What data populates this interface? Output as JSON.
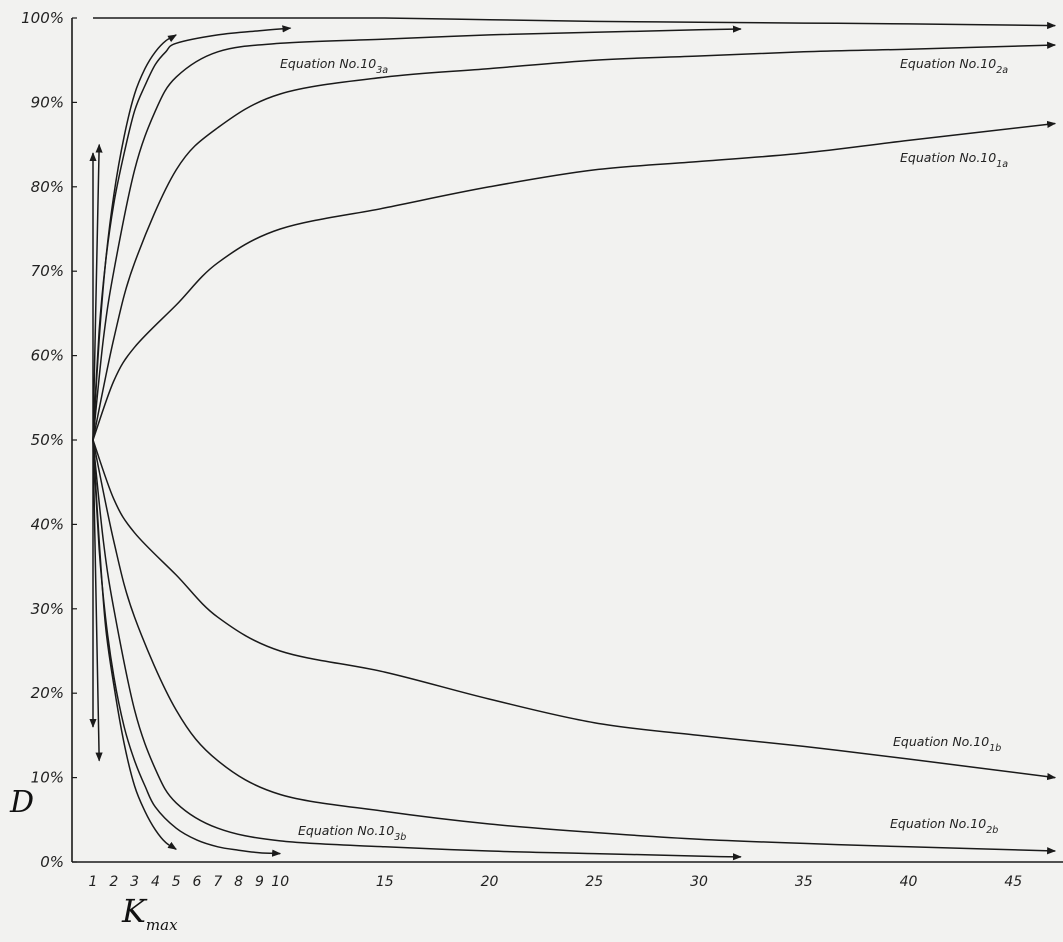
{
  "chart_data": {
    "type": "line",
    "title": "",
    "xlabel": "K",
    "xlabel_sub": "max",
    "ylabel": "D",
    "xlim": [
      0,
      47
    ],
    "ylim": [
      0,
      100
    ],
    "grid": false,
    "legend": "none",
    "x_ticks": [
      "1",
      "2",
      "3",
      "4",
      "5",
      "6",
      "7",
      "8",
      "9",
      "10",
      "15",
      "20",
      "25",
      "30",
      "35",
      "40",
      "45"
    ],
    "y_ticks": [
      "0%",
      "10%",
      "20%",
      "30%",
      "40%",
      "50%",
      "60%",
      "70%",
      "80%",
      "90%",
      "100%"
    ],
    "series": [
      {
        "name": "Equation No.10",
        "sub": "1a",
        "x": [
          1,
          2,
          3,
          5,
          7,
          10,
          15,
          20,
          25,
          30,
          35,
          40,
          47
        ],
        "y": [
          50,
          57,
          61,
          66,
          71,
          75,
          77.5,
          80,
          82,
          83,
          84,
          85.5,
          87.5
        ]
      },
      {
        "name": "Equation No.10",
        "sub": "2a",
        "x": [
          1,
          2,
          3,
          5,
          7,
          10,
          15,
          20,
          25,
          30,
          35,
          40,
          47
        ],
        "y": [
          50,
          62,
          71,
          82,
          87,
          91,
          93,
          94,
          95,
          95.5,
          96,
          96.3,
          96.8
        ]
      },
      {
        "name": "Equation No.10",
        "sub": "3a",
        "x": [
          1,
          1.5,
          2,
          3,
          4,
          5,
          7,
          10,
          15,
          20,
          25,
          30,
          32
        ],
        "y": [
          50,
          62,
          70,
          82,
          89,
          93,
          96,
          97,
          97.5,
          98,
          98.3,
          98.6,
          98.7
        ]
      },
      {
        "name": "",
        "x": [
          1,
          1.3,
          1.6,
          2,
          2.5,
          3,
          3.5,
          4,
          4.5,
          5,
          7,
          9,
          10.5
        ],
        "y": [
          50,
          63,
          71,
          78,
          84,
          89,
          92,
          94.5,
          96,
          97,
          98,
          98.5,
          98.8
        ]
      },
      {
        "name": "",
        "x": [
          1,
          1.3,
          1.6,
          2,
          2.5,
          3,
          3.5,
          4,
          4.5,
          5
        ],
        "y": [
          50,
          62,
          71,
          79,
          86,
          91,
          94,
          96,
          97.3,
          98
        ]
      },
      {
        "name": "",
        "x": [
          1,
          5,
          10,
          15,
          20,
          25,
          30,
          35,
          40,
          47
        ],
        "y": [
          100,
          100,
          100,
          100,
          99.8,
          99.6,
          99.5,
          99.4,
          99.3,
          99.1
        ]
      },
      {
        "name": "",
        "x": [
          1,
          1.3
        ],
        "y": [
          50,
          85
        ]
      },
      {
        "name": "",
        "x": [
          1,
          1
        ],
        "y": [
          50,
          84
        ]
      },
      {
        "name": "Equation No.10",
        "sub": "1b",
        "x": [
          1,
          2,
          3,
          5,
          7,
          10,
          15,
          20,
          25,
          30,
          35,
          40,
          47
        ],
        "y": [
          50,
          43,
          39,
          34,
          29,
          25,
          22.5,
          19.3,
          16.5,
          15,
          13.7,
          12.2,
          10
        ]
      },
      {
        "name": "Equation No.10",
        "sub": "2b",
        "x": [
          1,
          2,
          3,
          5,
          7,
          10,
          15,
          20,
          25,
          30,
          35,
          40,
          47
        ],
        "y": [
          50,
          38,
          29,
          18,
          12,
          8,
          6,
          4.5,
          3.5,
          2.7,
          2.2,
          1.8,
          1.3
        ]
      },
      {
        "name": "Equation No.10",
        "sub": "3b",
        "x": [
          1,
          1.5,
          2,
          3,
          4,
          5,
          7,
          10,
          15,
          20,
          25,
          30,
          32
        ],
        "y": [
          50,
          38,
          30,
          18,
          11,
          7,
          4,
          2.5,
          1.8,
          1.3,
          1,
          0.7,
          0.6
        ]
      },
      {
        "name": "",
        "x": [
          1,
          1.3,
          1.6,
          2,
          2.5,
          3,
          3.5,
          4,
          5,
          6,
          7,
          8,
          9,
          10
        ],
        "y": [
          50,
          37,
          29,
          22,
          16,
          12,
          9,
          6.5,
          4,
          2.6,
          1.8,
          1.4,
          1.1,
          1
        ]
      },
      {
        "name": "",
        "x": [
          1,
          1.3,
          1.6,
          2,
          2.5,
          3,
          3.5,
          4,
          4.5,
          5
        ],
        "y": [
          50,
          38,
          28,
          21,
          14,
          9,
          6,
          3.8,
          2.3,
          1.5
        ]
      },
      {
        "name": "",
        "x": [
          1,
          1.3
        ],
        "y": [
          50,
          12
        ]
      },
      {
        "name": "",
        "x": [
          1,
          1
        ],
        "y": [
          50,
          16
        ]
      }
    ]
  }
}
